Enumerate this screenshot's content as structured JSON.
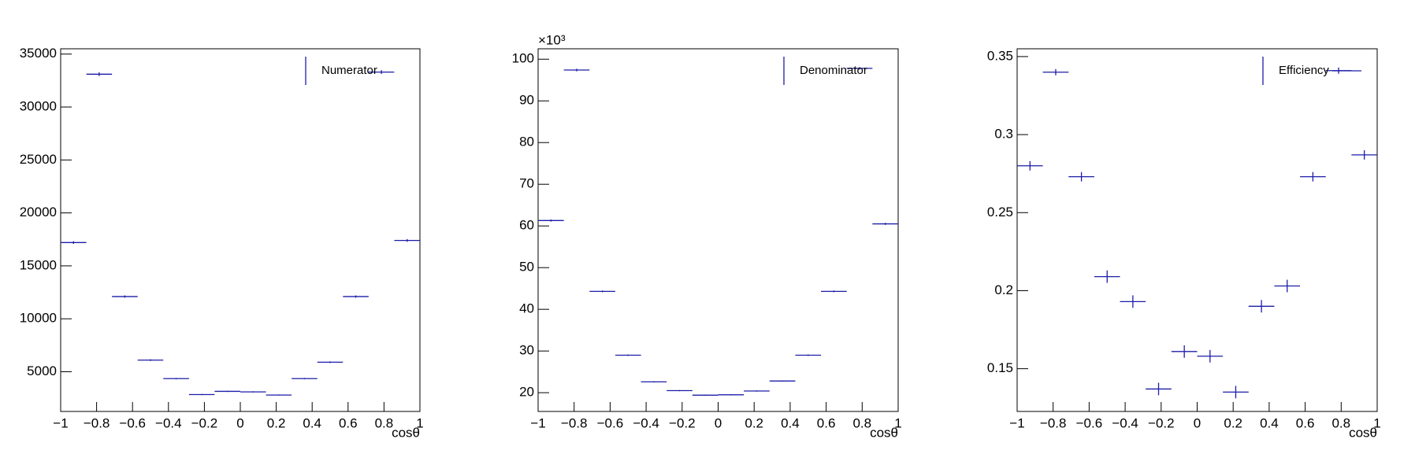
{
  "chart_data": [
    {
      "type": "histogram",
      "xlabel": "cosθ",
      "bins": [
        -1,
        -0.8571,
        -0.7143,
        -0.5714,
        -0.4286,
        -0.2857,
        -0.1429,
        0,
        0.1429,
        0.2857,
        0.4286,
        0.5714,
        0.7143,
        0.8571,
        1
      ],
      "series": [
        {
          "name": "Numerator",
          "color": "#1c1ca8",
          "values": [
            17200,
            33100,
            12100,
            6100,
            4350,
            2850,
            3150,
            3100,
            2800,
            4350,
            5900,
            12100,
            33300,
            17400
          ],
          "errors": [
            130,
            180,
            110,
            80,
            65,
            55,
            56,
            56,
            53,
            65,
            77,
            110,
            180,
            130
          ]
        }
      ],
      "xlim": [
        -1,
        1
      ],
      "ylim": [
        1250,
        35500
      ],
      "xticks": [
        {
          "value": -1,
          "label": "−1"
        },
        {
          "value": -0.8,
          "label": "−0.8"
        },
        {
          "value": -0.6,
          "label": "−0.6"
        },
        {
          "value": -0.4,
          "label": "−0.4"
        },
        {
          "value": -0.2,
          "label": "−0.2"
        },
        0,
        0.2,
        0.4,
        0.6,
        0.8,
        1
      ],
      "yticks": [
        5000,
        10000,
        15000,
        20000,
        25000,
        30000,
        35000
      ]
    },
    {
      "type": "histogram",
      "xlabel": "cosθ",
      "y_multiplier": "×10³",
      "bins": [
        -1,
        -0.8571,
        -0.7143,
        -0.5714,
        -0.4286,
        -0.2857,
        -0.1429,
        0,
        0.1429,
        0.2857,
        0.4286,
        0.5714,
        0.7143,
        0.8571,
        1
      ],
      "series": [
        {
          "name": "Denominator",
          "color": "#1c1ca8",
          "values": [
            61.3,
            97.4,
            44.3,
            29.0,
            22.6,
            20.5,
            19.4,
            19.5,
            20.4,
            22.8,
            29.0,
            44.3,
            97.8,
            60.5
          ],
          "errors": [
            0.25,
            0.31,
            0.21,
            0.17,
            0.15,
            0.14,
            0.14,
            0.14,
            0.14,
            0.15,
            0.17,
            0.21,
            0.31,
            0.25
          ]
        }
      ],
      "xlim": [
        -1,
        1
      ],
      "ylim": [
        15.5,
        102.5
      ],
      "xticks": [
        {
          "value": -1,
          "label": "−1"
        },
        {
          "value": -0.8,
          "label": "−0.8"
        },
        {
          "value": -0.6,
          "label": "−0.6"
        },
        {
          "value": -0.4,
          "label": "−0.4"
        },
        {
          "value": -0.2,
          "label": "−0.2"
        },
        0,
        0.2,
        0.4,
        0.6,
        0.8,
        1
      ],
      "yticks": [
        20,
        30,
        40,
        50,
        60,
        70,
        80,
        90,
        100
      ]
    },
    {
      "type": "histogram",
      "xlabel": "cosθ",
      "bins": [
        -1,
        -0.8571,
        -0.7143,
        -0.5714,
        -0.4286,
        -0.2857,
        -0.1429,
        0,
        0.1429,
        0.2857,
        0.4286,
        0.5714,
        0.7143,
        0.8571,
        1
      ],
      "series": [
        {
          "name": "Efficiency",
          "color": "#1c1ca8",
          "values": [
            0.28,
            0.34,
            0.273,
            0.209,
            0.193,
            0.137,
            0.161,
            0.158,
            0.135,
            0.19,
            0.203,
            0.273,
            0.341,
            0.287
          ],
          "errors": [
            0.003,
            0.002,
            0.003,
            0.004,
            0.004,
            0.004,
            0.004,
            0.004,
            0.004,
            0.004,
            0.004,
            0.003,
            0.002,
            0.003
          ]
        }
      ],
      "xlim": [
        -1,
        1
      ],
      "ylim": [
        0.1226,
        0.355
      ],
      "xticks": [
        {
          "value": -1,
          "label": "−1"
        },
        {
          "value": -0.8,
          "label": "−0.8"
        },
        {
          "value": -0.6,
          "label": "−0.6"
        },
        {
          "value": -0.4,
          "label": "−0.4"
        },
        {
          "value": -0.2,
          "label": "−0.2"
        },
        0,
        0.2,
        0.4,
        0.6,
        0.8,
        1
      ],
      "yticks": [
        0.15,
        0.2,
        0.25,
        0.3,
        0.35
      ]
    }
  ]
}
